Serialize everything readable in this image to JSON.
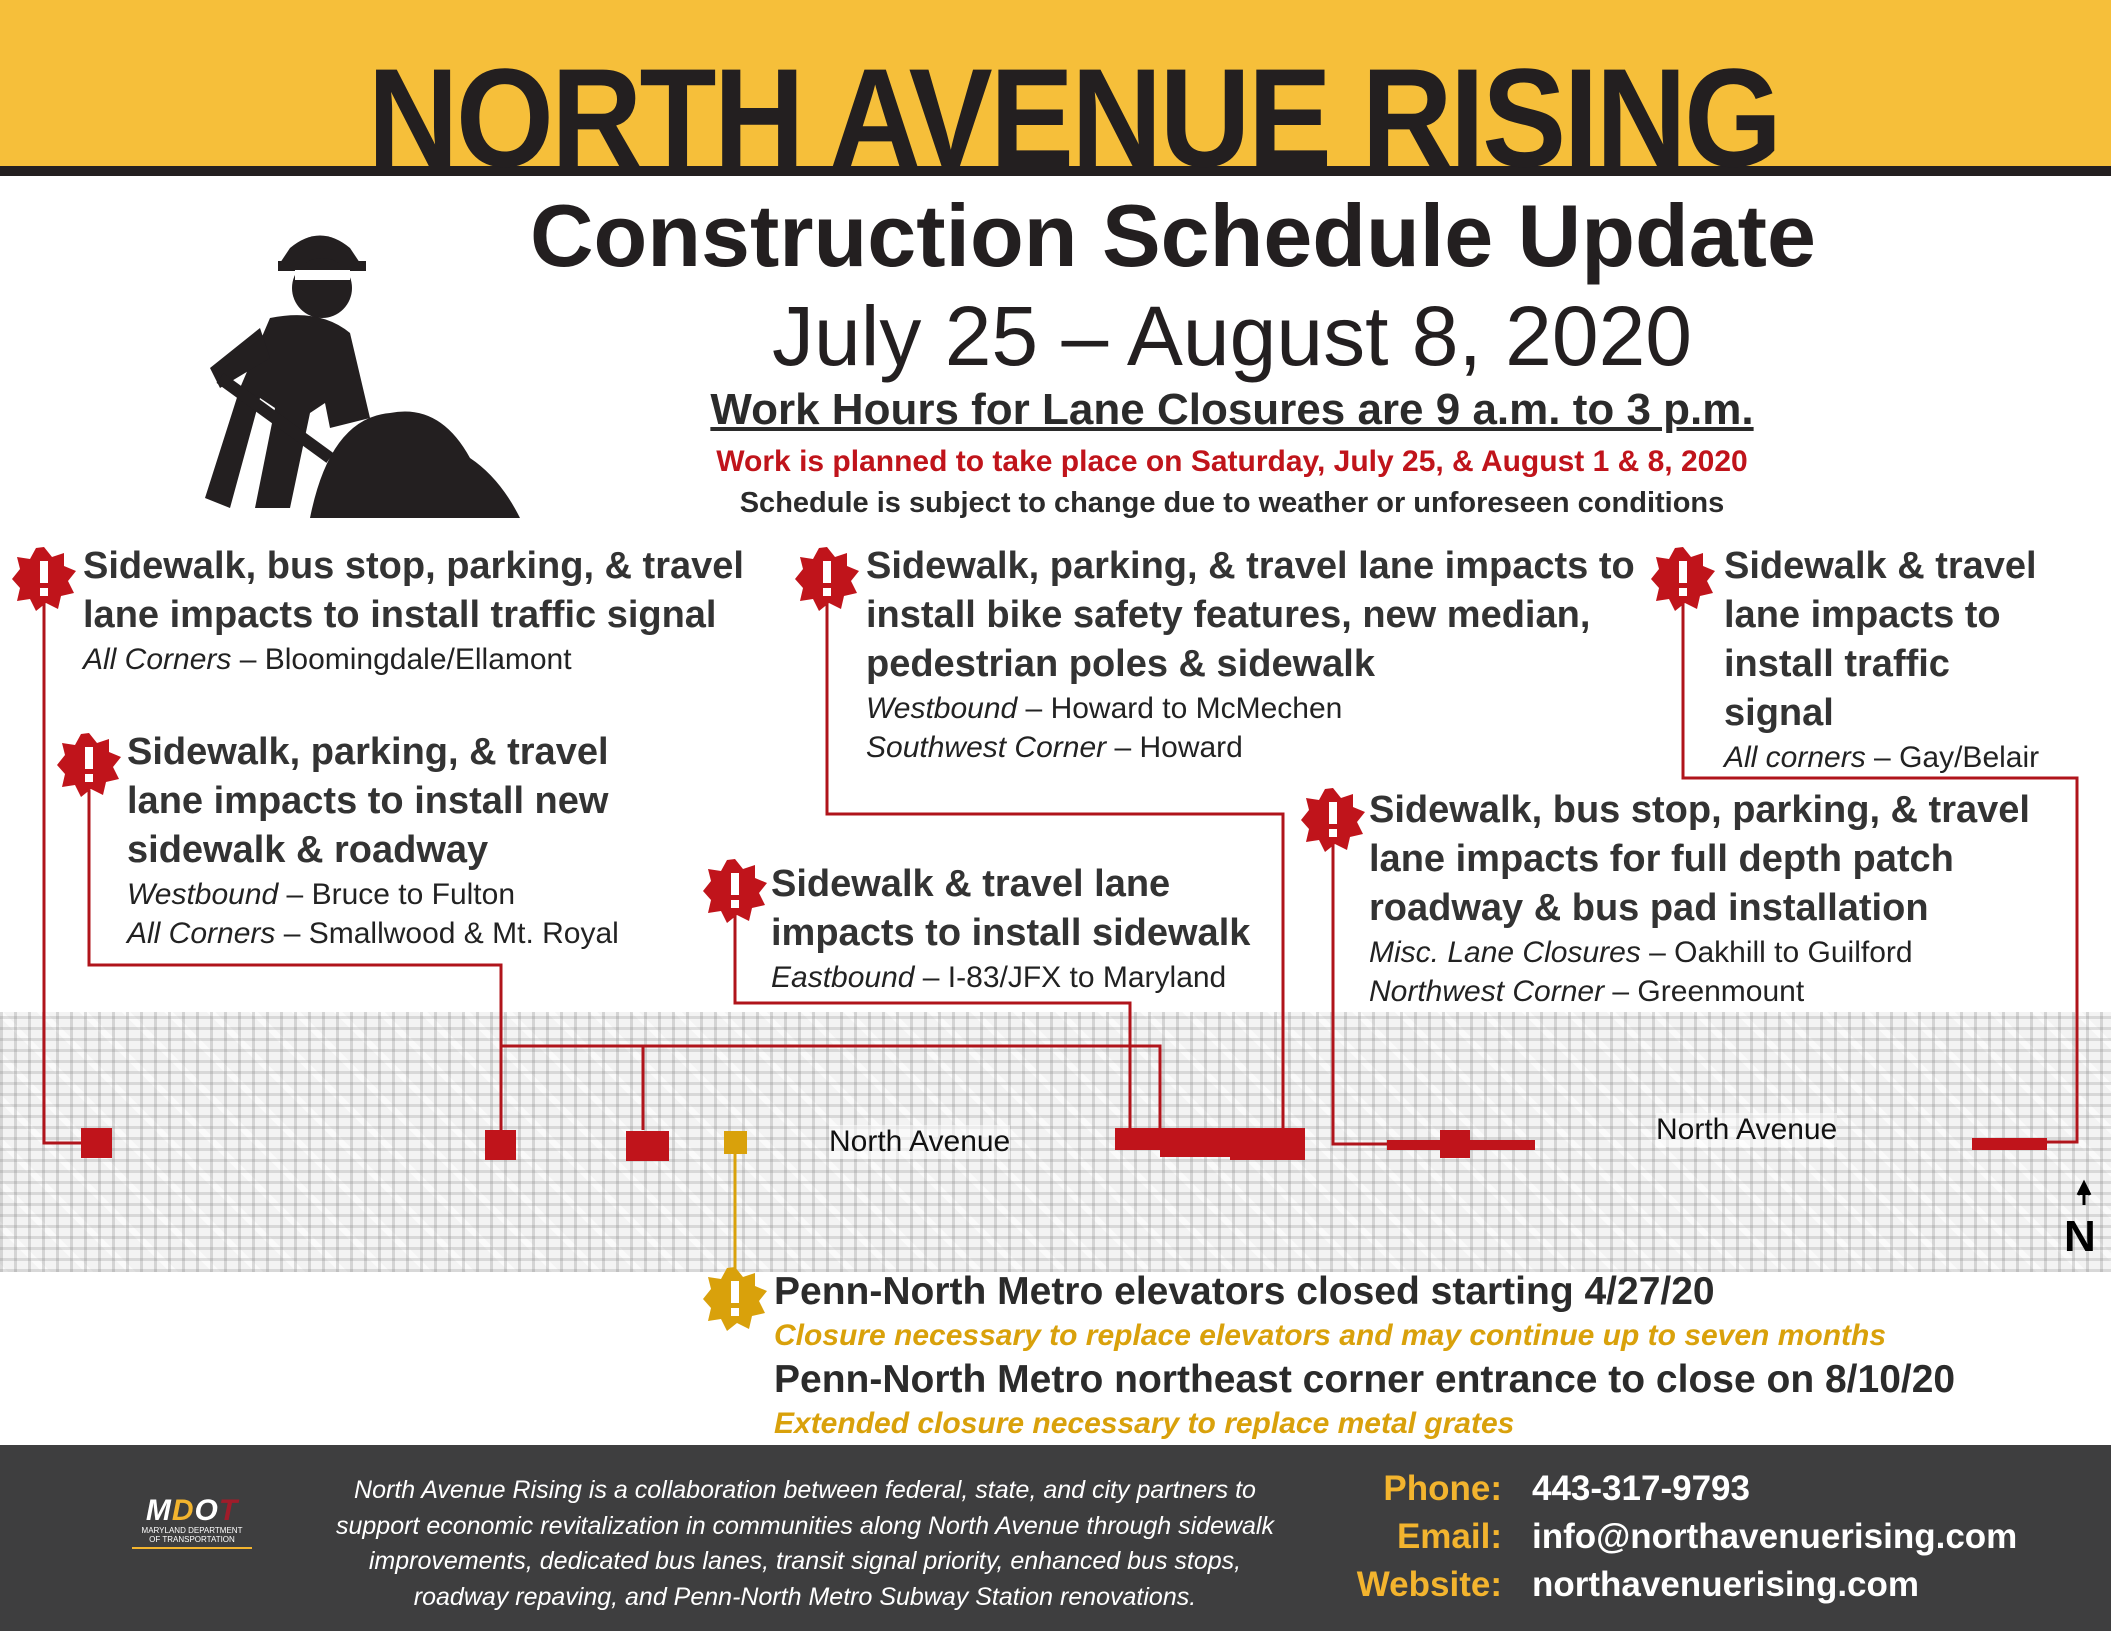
{
  "header": {
    "title": "NORTH AVENUE RISING",
    "subtitle": "Construction Schedule Update",
    "dates": "July 25 – August 8, 2020",
    "work_hours": "Work Hours for Lane Closures are 9 a.m. to 3 p.m.",
    "planned": "Work is planned to take place on Saturday, July 25, & August 1 & 8, 2020",
    "disclaimer": "Schedule is subject to change due to weather or unforeseen conditions"
  },
  "colors": {
    "accent_yellow": "#f6bf3a",
    "alert_red": "#c0141b",
    "metro_gold": "#d9a10b",
    "footer_bg": "#3e3e3f"
  },
  "icons": {
    "worker": "construction-worker-shoveling-icon",
    "alert": "alert-starburst-icon",
    "north": "north-arrow-icon"
  },
  "impacts": [
    {
      "title": "Sidewalk, bus stop, parking, & travel lane impacts to install traffic signal",
      "details": [
        {
          "dir": "All Corners",
          "loc": " – Bloomingdale/Ellamont"
        }
      ]
    },
    {
      "title": "Sidewalk, parking, & travel lane impacts to install new sidewalk & roadway",
      "details": [
        {
          "dir": "Westbound",
          "loc": " – Bruce to Fulton"
        },
        {
          "dir": "All Corners",
          "loc": " – Smallwood  & Mt. Royal"
        }
      ]
    },
    {
      "title": "Sidewalk, parking, & travel lane impacts to install bike safety features, new median, pedestrian poles & sidewalk",
      "details": [
        {
          "dir": "Westbound",
          "loc": " – Howard to McMechen"
        },
        {
          "dir": "Southwest Corner",
          "loc": " – Howard"
        }
      ]
    },
    {
      "title": "Sidewalk & travel lane impacts to install sidewalk",
      "details": [
        {
          "dir": "Eastbound",
          "loc": " – I-83/JFX to Maryland"
        }
      ]
    },
    {
      "title": "Sidewalk & travel lane impacts to install traffic signal",
      "details": [
        {
          "dir": "All corners",
          "loc": " – Gay/Belair"
        }
      ]
    },
    {
      "title": "Sidewalk, bus stop, parking, & travel lane impacts for full depth patch roadway & bus pad installation",
      "details": [
        {
          "dir": "Misc. Lane Closures",
          "loc": " – Oakhill to Guilford"
        },
        {
          "dir": "Northwest Corner",
          "loc": " – Greenmount"
        }
      ]
    }
  ],
  "map": {
    "road_label_1": "North Avenue",
    "road_label_2": "North Avenue",
    "north": "N"
  },
  "metro": {
    "h1": "Penn-North Metro elevators closed starting 4/27/20",
    "s1": "Closure necessary to replace elevators and may continue up to seven months",
    "h2": "Penn-North Metro northeast corner entrance to close on 8/10/20",
    "s2": "Extended closure necessary to replace metal grates"
  },
  "footer": {
    "logo": {
      "mark": "MDOT",
      "line1": "MARYLAND DEPARTMENT",
      "line2": "OF TRANSPORTATION"
    },
    "description": [
      "North Avenue Rising is a collaboration between federal, state, and city partners to",
      "support economic revitalization in communities along North Avenue through sidewalk",
      "improvements, dedicated bus lanes, transit signal priority, enhanced bus stops,",
      "roadway repaving, and Penn-North Metro Subway Station renovations."
    ],
    "contacts": [
      {
        "label": "Phone:",
        "value": "443-317-9793"
      },
      {
        "label": "Email:",
        "value": "info@northavenuerising.com"
      },
      {
        "label": "Website:",
        "value": "northavenuerising.com"
      }
    ]
  }
}
